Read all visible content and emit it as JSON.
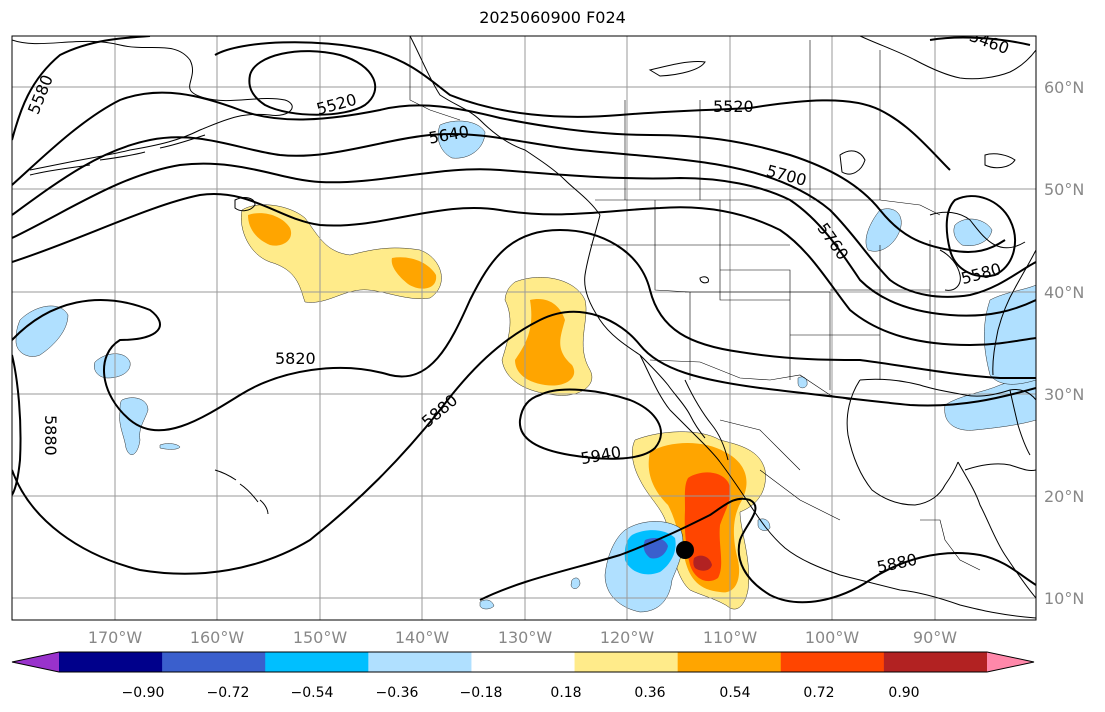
{
  "title": "2025060900 F024",
  "longitude_labels": [
    "170°W",
    "160°W",
    "150°W",
    "140°W",
    "130°W",
    "120°W",
    "110°W",
    "100°W",
    "90°W"
  ],
  "latitude_labels": [
    "60°N",
    "50°N",
    "40°N",
    "30°N",
    "20°N",
    "10°N"
  ],
  "contour_labels": [
    "5580",
    "5520",
    "5640",
    "5520",
    "5460",
    "5700",
    "5760",
    "5580",
    "5820",
    "5880",
    "5880",
    "5940",
    "5880"
  ],
  "colorbar": {
    "tick_labels": [
      "−0.90",
      "−0.72",
      "−0.54",
      "−0.36",
      "−0.18",
      "0.18",
      "0.36",
      "0.54",
      "0.72",
      "0.90"
    ],
    "colors": [
      "#9932cc",
      "#00008b",
      "#3a5fcd",
      "#00bfff",
      "#b0e0ff",
      "#ffffff",
      "#ffeb8a",
      "#ffa500",
      "#ff4500",
      "#b22222",
      "#ff88aa"
    ]
  },
  "shading_colors": {
    "light_yellow": "#ffeb8a",
    "orange": "#ffa500",
    "red_orange": "#ff4500",
    "dark_red": "#b22222",
    "light_blue": "#b0e0ff",
    "cyan": "#00bfff",
    "medium_blue": "#3a5fcd"
  },
  "marker": "storm-center-dot"
}
